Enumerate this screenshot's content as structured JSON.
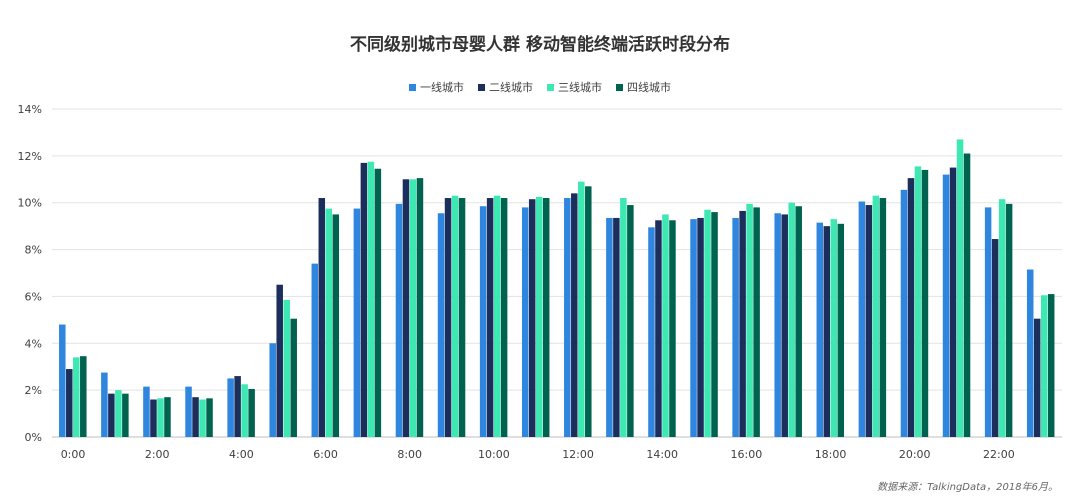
{
  "chart_data": {
    "type": "bar",
    "title": "不同级别城市母婴人群  移动智能终端活跃时段分布",
    "xlabel": "",
    "ylabel": "",
    "ylim": [
      0,
      14
    ],
    "yticks": [
      0,
      2,
      4,
      6,
      8,
      10,
      12,
      14
    ],
    "ytick_labels": [
      "0%",
      "2%",
      "4%",
      "6%",
      "8%",
      "10%",
      "12%",
      "14%"
    ],
    "categories": [
      "0:00",
      "1:00",
      "2:00",
      "3:00",
      "4:00",
      "5:00",
      "6:00",
      "7:00",
      "8:00",
      "9:00",
      "10:00",
      "11:00",
      "12:00",
      "13:00",
      "14:00",
      "15:00",
      "16:00",
      "17:00",
      "18:00",
      "19:00",
      "20:00",
      "21:00",
      "22:00",
      "23:00"
    ],
    "xtick_labels": [
      "0:00",
      "",
      "2:00",
      "",
      "4:00",
      "",
      "6:00",
      "",
      "8:00",
      "",
      "10:00",
      "",
      "12:00",
      "",
      "14:00",
      "",
      "16:00",
      "",
      "18:00",
      "",
      "20:00",
      "",
      "22:00",
      ""
    ],
    "grid": true,
    "legend_position": "top-center",
    "series": [
      {
        "name": "一线城市",
        "color": "#2e86de",
        "values": [
          4.8,
          2.75,
          2.15,
          2.15,
          2.5,
          4.0,
          7.4,
          9.75,
          9.95,
          9.55,
          9.85,
          9.8,
          10.2,
          9.35,
          8.95,
          9.3,
          9.35,
          9.55,
          9.15,
          10.05,
          10.55,
          11.2,
          9.8,
          7.15
        ]
      },
      {
        "name": "二线城市",
        "color": "#1c2e5c",
        "values": [
          2.9,
          1.85,
          1.6,
          1.7,
          2.6,
          6.5,
          10.2,
          11.7,
          11.0,
          10.2,
          10.2,
          10.15,
          10.4,
          9.35,
          9.25,
          9.35,
          9.65,
          9.5,
          9.0,
          9.9,
          11.05,
          11.5,
          8.45,
          5.05
        ]
      },
      {
        "name": "三线城市",
        "color": "#3de8b2",
        "values": [
          3.4,
          2.0,
          1.65,
          1.6,
          2.25,
          5.85,
          9.75,
          11.75,
          11.0,
          10.3,
          10.3,
          10.25,
          10.9,
          10.2,
          9.5,
          9.7,
          9.95,
          10.0,
          9.3,
          10.3,
          11.55,
          12.7,
          10.15,
          6.05
        ]
      },
      {
        "name": "四线城市",
        "color": "#00634f",
        "values": [
          3.45,
          1.85,
          1.7,
          1.65,
          2.05,
          5.05,
          9.5,
          11.45,
          11.05,
          10.2,
          10.2,
          10.2,
          10.7,
          9.9,
          9.25,
          9.6,
          9.8,
          9.85,
          9.1,
          10.2,
          11.4,
          12.1,
          9.95,
          6.1
        ]
      }
    ]
  },
  "source_note": "数据来源：TalkingData，2018年6月。"
}
